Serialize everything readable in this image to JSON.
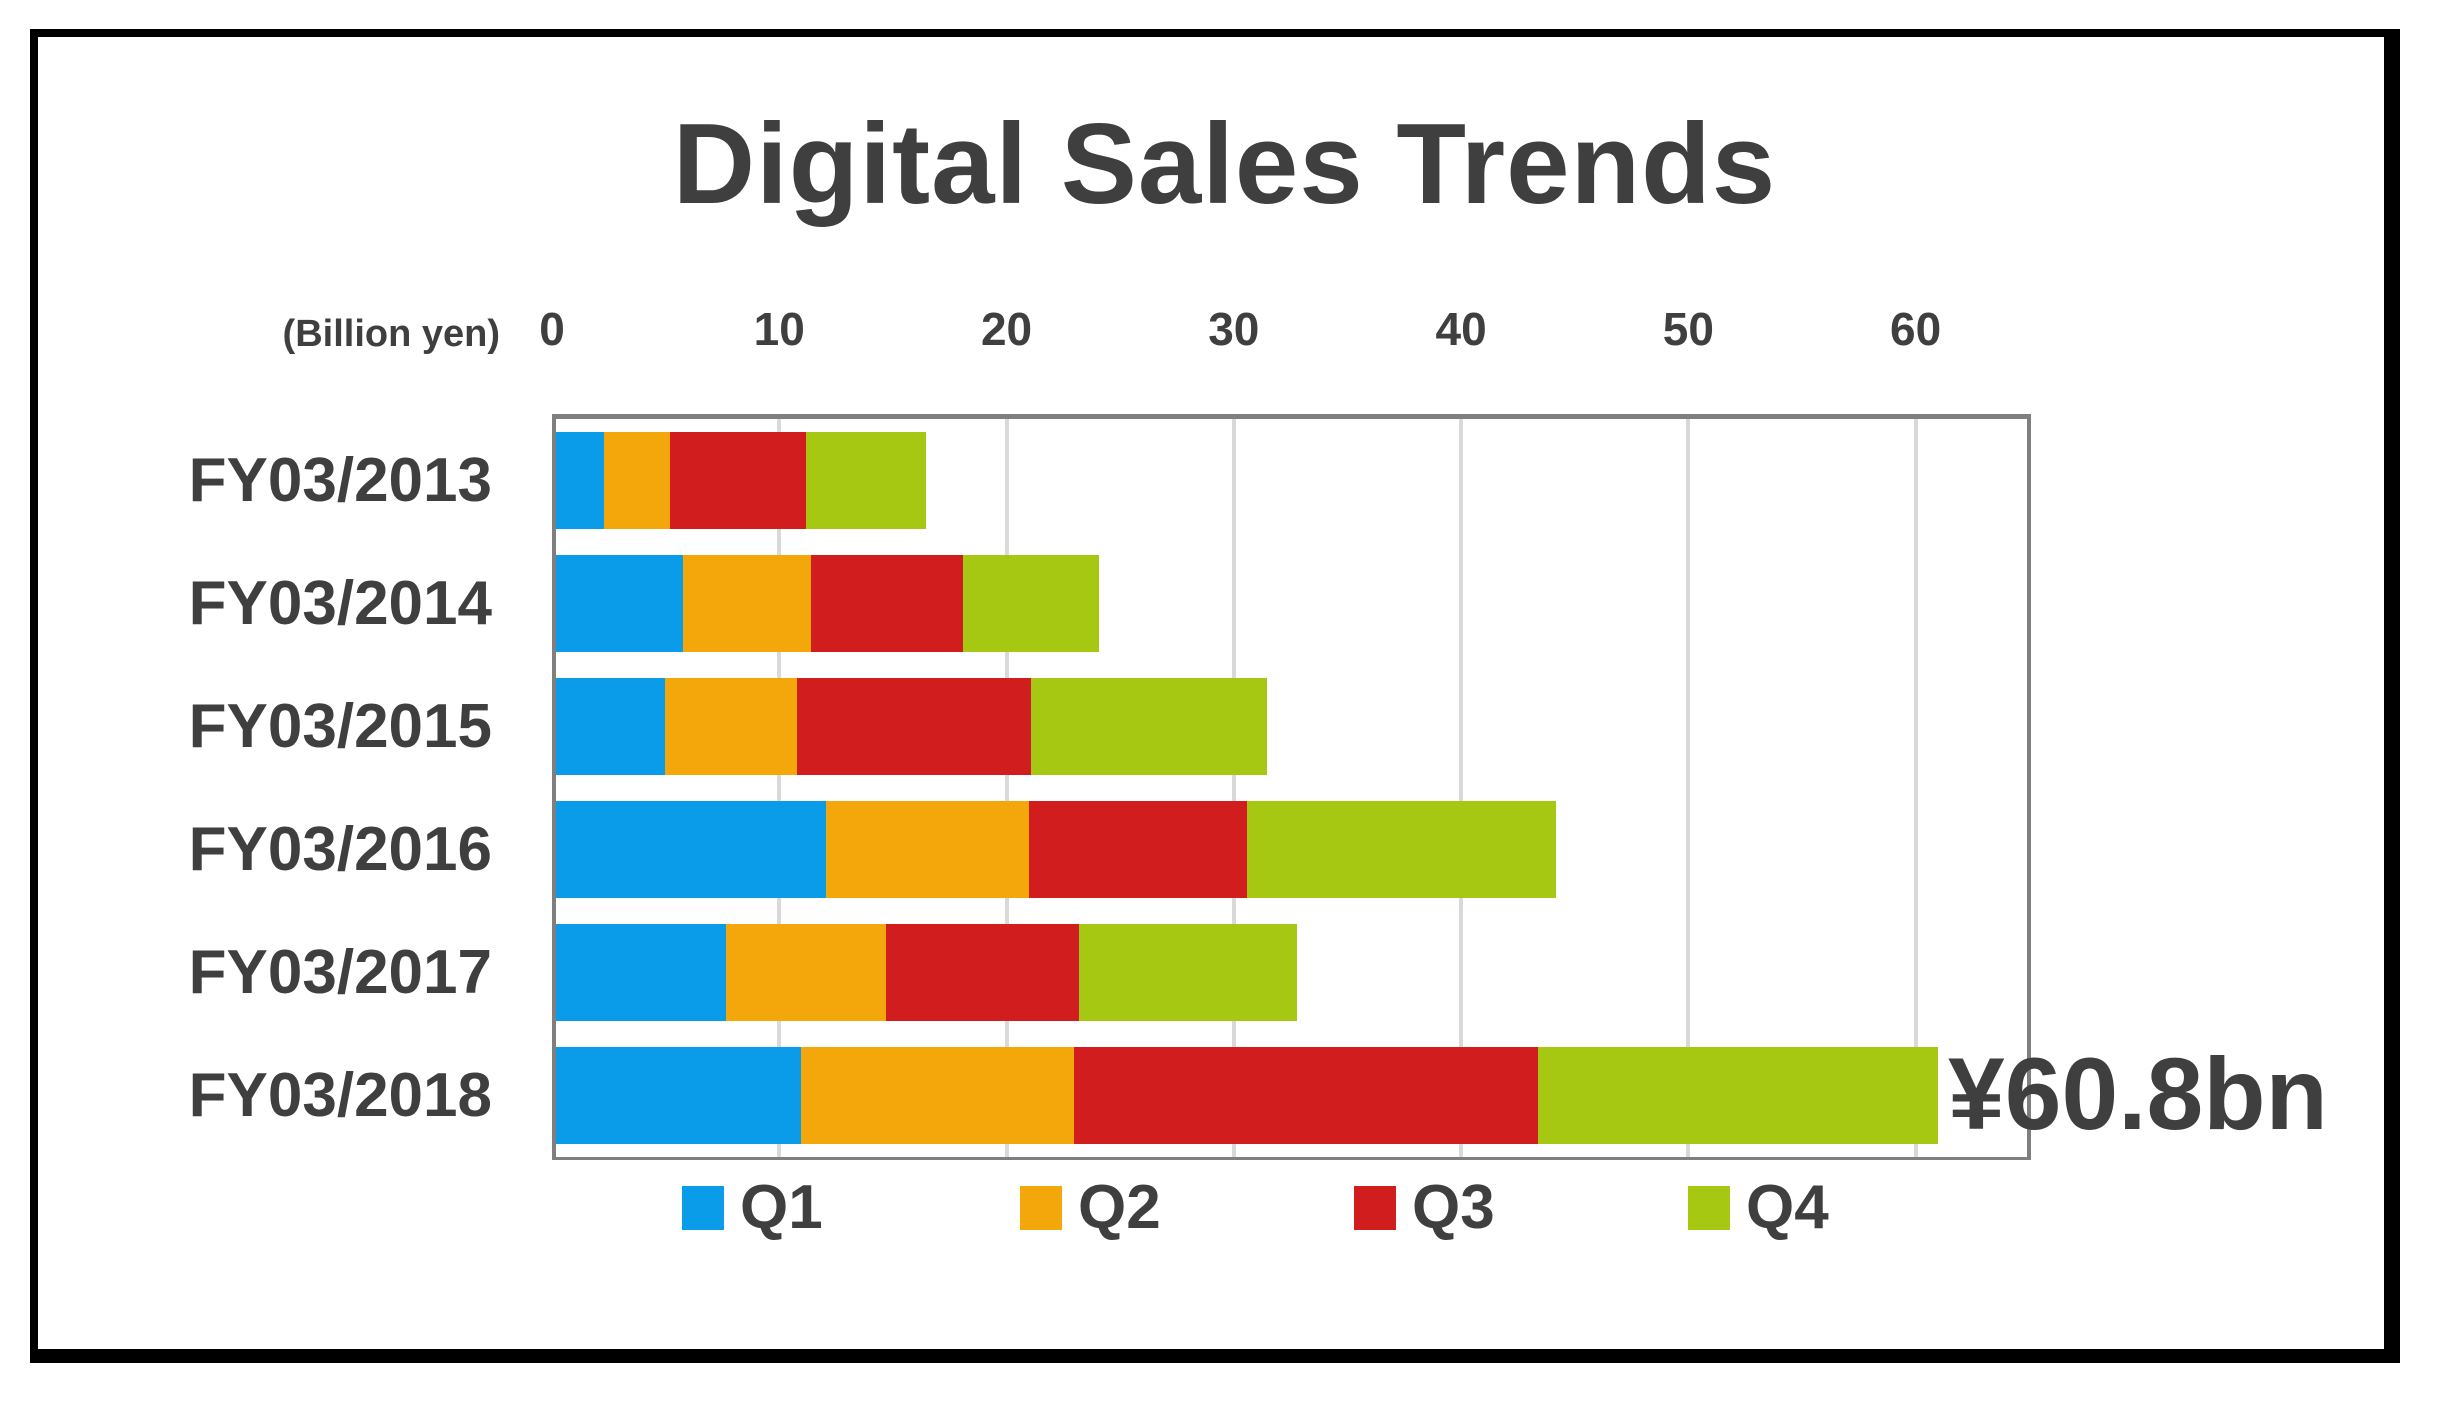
{
  "chart_data": {
    "type": "bar",
    "orientation": "horizontal",
    "stacked": true,
    "title": "Digital Sales Trends",
    "unit_label": "(Billion yen)",
    "categories": [
      "FY03/2013",
      "FY03/2014",
      "FY03/2015",
      "FY03/2016",
      "FY03/2017",
      "FY03/2018"
    ],
    "series": [
      {
        "name": "Q1",
        "color": "#0a9ce8",
        "values": [
          2.1,
          5.6,
          4.8,
          11.9,
          7.5,
          10.8
        ]
      },
      {
        "name": "Q2",
        "color": "#f4a70a",
        "values": [
          2.9,
          5.6,
          5.8,
          8.9,
          7.0,
          12.0
        ]
      },
      {
        "name": "Q3",
        "color": "#d11d1d",
        "values": [
          6.0,
          6.7,
          10.3,
          9.6,
          8.5,
          20.4
        ]
      },
      {
        "name": "Q4",
        "color": "#a6c812",
        "values": [
          5.3,
          6.0,
          10.4,
          13.6,
          9.6,
          17.6
        ]
      }
    ],
    "x_axis": {
      "ticks": [
        0,
        10,
        20,
        30,
        40,
        50,
        60
      ],
      "xlim": [
        0,
        65
      ],
      "gridlines": true
    },
    "annotation": {
      "text": "¥60.8bn",
      "category": "FY03/2018",
      "value": 60.8
    },
    "legend": {
      "position": "bottom",
      "entries": [
        "Q1",
        "Q2",
        "Q3",
        "Q4"
      ]
    }
  },
  "colors": {
    "text": "#3f3f3f",
    "plot_border": "#7f7f7f",
    "gridline": "#d9d9d9",
    "frame": "#000000",
    "background": "#ffffff"
  }
}
